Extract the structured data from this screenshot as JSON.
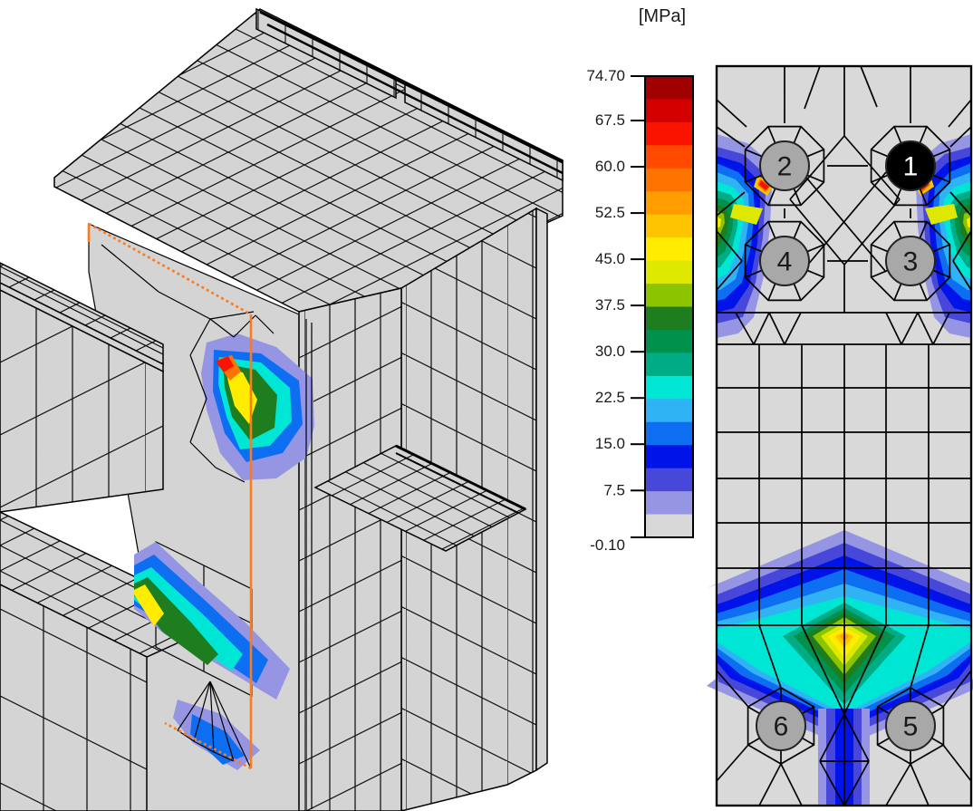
{
  "page": {
    "background": "#ffffff"
  },
  "legend": {
    "title": "[MPa]",
    "range_max": 74.7,
    "range_min": -0.1,
    "tick_labels": [
      "74.70",
      "67.5",
      "60.0",
      "52.5",
      "45.0",
      "37.5",
      "30.0",
      "22.5",
      "15.0",
      "7.5",
      "-0.10"
    ],
    "tick_values": [
      74.7,
      67.5,
      60.0,
      52.5,
      45.0,
      37.5,
      30.0,
      22.5,
      15.0,
      7.5,
      -0.1
    ],
    "band_colors": [
      "#a00000",
      "#d40000",
      "#fa1400",
      "#ff4a00",
      "#ff7400",
      "#ff9d00",
      "#ffc400",
      "#ffec00",
      "#dfe900",
      "#8cc400",
      "#1e7d1e",
      "#00914d",
      "#00ac85",
      "#00e6d4",
      "#2fb3f5",
      "#0e6ef2",
      "#0013e8",
      "#4747da",
      "#9595e4",
      "#d8d8d8"
    ]
  },
  "model_view": {
    "mesh_fill": "#d4d4d4",
    "mesh_line_color": "#000000",
    "section_outline_color": "#ff7a1a"
  },
  "detail_panel": {
    "background": "#d9d9d9",
    "outline_color": "#000000",
    "bolts": [
      {
        "label": "1",
        "fill": "#000000",
        "text_color": "#ffffff",
        "selected": true
      },
      {
        "label": "2",
        "fill": "#a8a8a8",
        "text_color": "#1a1a1a",
        "selected": false
      },
      {
        "label": "3",
        "fill": "#a8a8a8",
        "text_color": "#1a1a1a",
        "selected": false
      },
      {
        "label": "4",
        "fill": "#a8a8a8",
        "text_color": "#1a1a1a",
        "selected": false
      },
      {
        "label": "5",
        "fill": "#a8a8a8",
        "text_color": "#1a1a1a",
        "selected": false
      },
      {
        "label": "6",
        "fill": "#a8a8a8",
        "text_color": "#1a1a1a",
        "selected": false
      }
    ]
  }
}
